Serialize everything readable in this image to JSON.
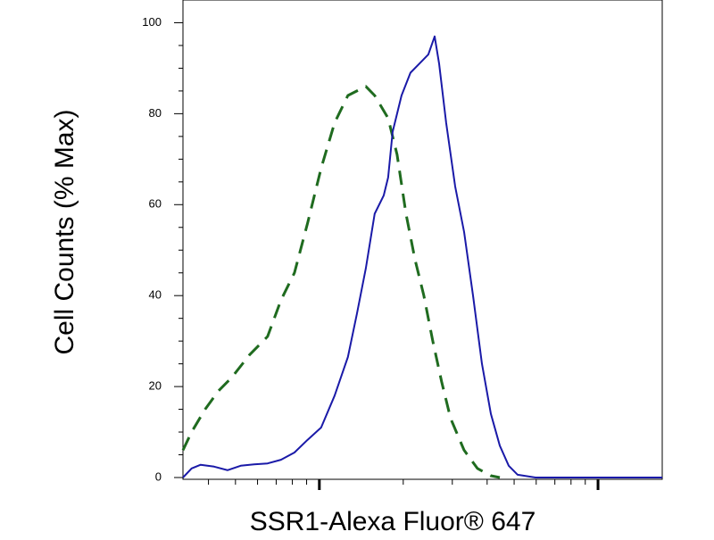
{
  "chart_data": {
    "type": "line",
    "x_label": "SSR1-Alexa Fluor® 647",
    "y_label": "Cell Counts (% Max)",
    "xscale": "log",
    "xlim": [
      324,
      17000
    ],
    "xticks": [
      1000,
      10000
    ],
    "xminorticks": [
      400,
      500,
      600,
      700,
      800,
      900,
      2000,
      3000,
      4000,
      5000,
      6000,
      7000,
      8000,
      9000
    ],
    "ylim": [
      0,
      105
    ],
    "yticks": [
      0,
      20,
      40,
      60,
      80,
      100
    ],
    "yminorticks": [
      5,
      10,
      15,
      25,
      30,
      35,
      45,
      50,
      55,
      65,
      70,
      75,
      85,
      90,
      95
    ],
    "series": [
      {
        "color": "#1f6b1f",
        "dash": true,
        "x": [
          324,
          348,
          389,
          434,
          485,
          562,
          652,
          728,
          814,
          908,
          1015,
          1134,
          1266,
          1364,
          1468,
          1580,
          1766,
          1900,
          2046,
          2203,
          2371,
          2553,
          2748,
          2958,
          3306,
          3690,
          4125,
          4442
        ],
        "values": [
          6,
          10,
          15,
          19,
          22,
          27,
          31,
          39,
          45,
          56,
          68,
          78,
          84,
          85,
          86,
          84,
          79,
          71,
          58,
          48,
          40,
          30,
          21,
          13,
          6,
          2,
          0.4,
          0
        ]
      },
      {
        "color": "#1a1aa8",
        "dash": false,
        "x": [
          324,
          348,
          375,
          419,
          468,
          522,
          583,
          652,
          728,
          814,
          908,
          1015,
          1134,
          1266,
          1364,
          1468,
          1580,
          1702,
          1766,
          1832,
          1972,
          2123,
          2286,
          2460,
          2592,
          2689,
          2852,
          3071,
          3306,
          3559,
          3832,
          4125,
          4442,
          4780,
          5146,
          5966,
          17000
        ],
        "values": [
          0,
          2,
          2.8,
          2.4,
          1.6,
          2.6,
          2.9,
          3.1,
          3.9,
          5.5,
          8.3,
          11,
          18,
          26.5,
          36,
          46,
          58,
          62,
          66,
          76,
          84,
          89,
          91,
          93,
          97,
          91,
          78,
          64,
          54,
          40,
          25,
          14,
          7,
          2.6,
          0.6,
          0,
          0
        ]
      }
    ]
  }
}
